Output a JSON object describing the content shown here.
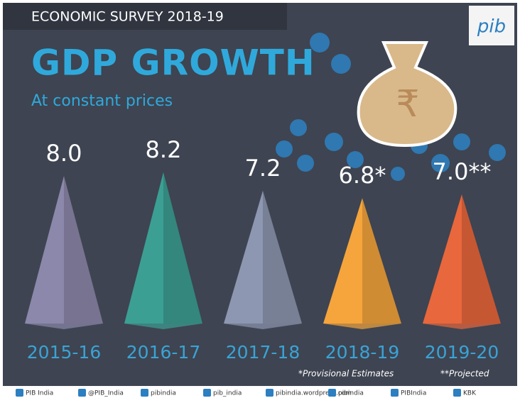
{
  "header": {
    "title": "ECONOMIC SURVEY 2018-19",
    "logo": "pib"
  },
  "chart_data": {
    "type": "pyramid",
    "title": "GDP GROWTH",
    "subtitle": "At constant prices",
    "categories": [
      "2015-16",
      "2016-17",
      "2017-18",
      "2018-19",
      "2019-20"
    ],
    "values": [
      8.0,
      8.2,
      7.2,
      6.8,
      7.0
    ],
    "value_labels": [
      "8.0",
      "8.2",
      "7.2",
      "6.8*",
      "7.0**"
    ],
    "colors": [
      "#8c88ab",
      "#3c9f93",
      "#8d97b1",
      "#f5a53c",
      "#e9673c"
    ],
    "notes": [
      "*Provisional Estimates",
      "**Projected"
    ]
  },
  "footer": {
    "items": [
      "PIB India",
      "@PIB_India",
      "pibindia",
      "pib_india",
      "pibindia.wordpress.com",
      "pibindia",
      "PIBIndia",
      "KBK"
    ]
  }
}
